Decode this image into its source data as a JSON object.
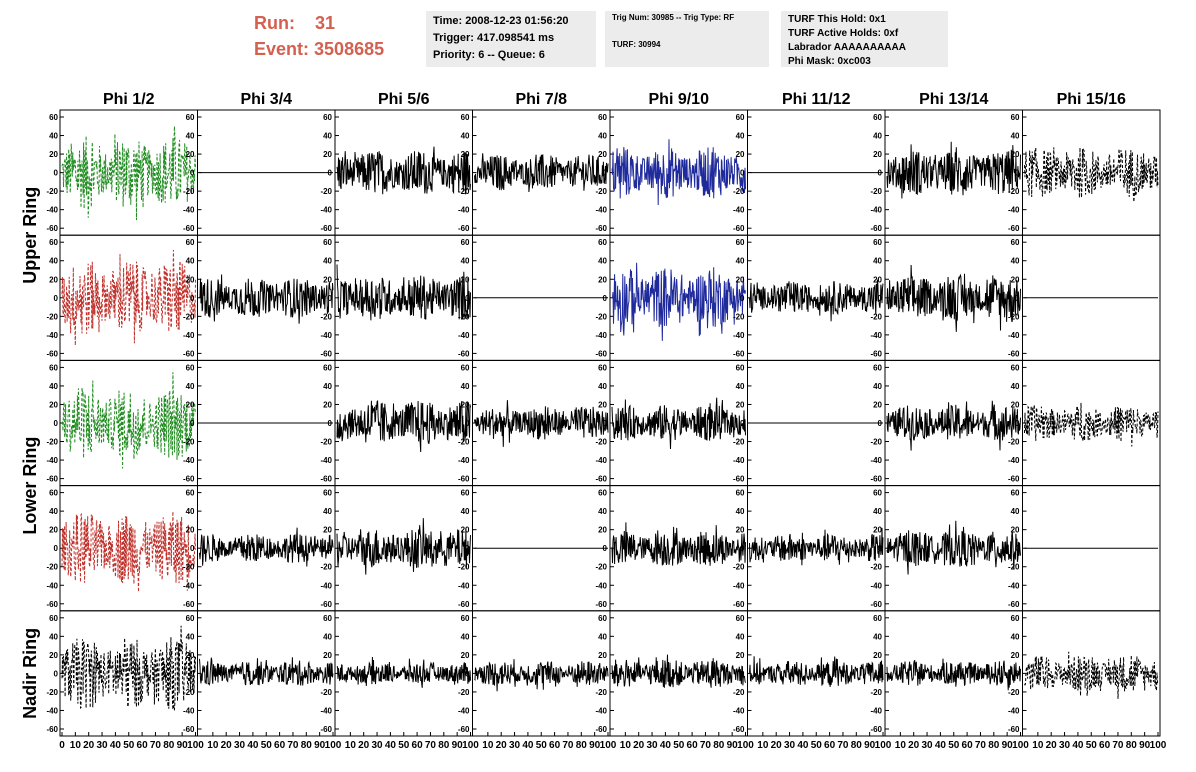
{
  "header": {
    "run_label": "Run:",
    "run_value": "31",
    "event_label": "Event:",
    "event_value": "3508685",
    "time_line": "Time: 2008-12-23 01:56:20",
    "trigger_line": "Trigger: 417.098541 ms",
    "priority_line": "Priority: 6 -- Queue: 6",
    "trig_num_line": "Trig Num: 30985 -- Trig Type: RF",
    "turf_line": "TURF: 30994",
    "turf_hold_line": "TURF This Hold: 0x1",
    "turf_active_line": "TURF Active Holds: 0xf",
    "labrador_line": "Labrador AAAAAAAAAA",
    "phi_mask_line": "Phi Mask: 0xc003"
  },
  "columns": [
    "Phi 1/2",
    "Phi 3/4",
    "Phi 5/6",
    "Phi 7/8",
    "Phi 9/10",
    "Phi 11/12",
    "Phi 13/14",
    "Phi 15/16"
  ],
  "ring_labels": [
    "Upper Ring",
    "Lower Ring",
    "Nadir Ring"
  ],
  "colors": {
    "green": "#1f8c1f",
    "red": "#c0302a",
    "blue": "#1f2a9c",
    "black": "#000000",
    "header_red": "#d4604f"
  },
  "chart_data": {
    "type": "line",
    "title": "",
    "xlabel": "",
    "ylabel": "",
    "xlim": [
      0,
      100
    ],
    "ylim": [
      -60,
      60
    ],
    "yticks": [
      -60,
      -40,
      -20,
      0,
      20,
      40,
      60
    ],
    "xticks": [
      0,
      10,
      20,
      30,
      40,
      50,
      60,
      70,
      80,
      90,
      100
    ],
    "grid": false,
    "panel_rows": 5,
    "panel_cols": 8,
    "panels": [
      {
        "row": 0,
        "col": 0,
        "style": "dashed",
        "color": "green",
        "amplitude": 40,
        "flat": false
      },
      {
        "row": 0,
        "col": 1,
        "style": "solid",
        "color": "black",
        "amplitude": 0,
        "flat": true
      },
      {
        "row": 0,
        "col": 2,
        "style": "solid",
        "color": "black",
        "amplitude": 25,
        "flat": false
      },
      {
        "row": 0,
        "col": 3,
        "style": "solid",
        "color": "black",
        "amplitude": 20,
        "flat": false
      },
      {
        "row": 0,
        "col": 4,
        "style": "solid",
        "color": "blue",
        "amplitude": 28,
        "flat": false
      },
      {
        "row": 0,
        "col": 5,
        "style": "solid",
        "color": "black",
        "amplitude": 0,
        "flat": true
      },
      {
        "row": 0,
        "col": 6,
        "style": "solid",
        "color": "black",
        "amplitude": 25,
        "flat": false
      },
      {
        "row": 0,
        "col": 7,
        "style": "dashed",
        "color": "black",
        "amplitude": 28,
        "flat": false
      },
      {
        "row": 1,
        "col": 0,
        "style": "dashed",
        "color": "red",
        "amplitude": 42,
        "flat": false
      },
      {
        "row": 1,
        "col": 1,
        "style": "solid",
        "color": "black",
        "amplitude": 22,
        "flat": false
      },
      {
        "row": 1,
        "col": 2,
        "style": "solid",
        "color": "black",
        "amplitude": 25,
        "flat": false
      },
      {
        "row": 1,
        "col": 3,
        "style": "solid",
        "color": "black",
        "amplitude": 0,
        "flat": true
      },
      {
        "row": 1,
        "col": 4,
        "style": "solid",
        "color": "blue",
        "amplitude": 34,
        "flat": false
      },
      {
        "row": 1,
        "col": 5,
        "style": "solid",
        "color": "black",
        "amplitude": 18,
        "flat": false
      },
      {
        "row": 1,
        "col": 6,
        "style": "solid",
        "color": "black",
        "amplitude": 25,
        "flat": false
      },
      {
        "row": 1,
        "col": 7,
        "style": "solid",
        "color": "black",
        "amplitude": 0,
        "flat": true
      },
      {
        "row": 2,
        "col": 0,
        "style": "dashed",
        "color": "green",
        "amplitude": 40,
        "flat": false
      },
      {
        "row": 2,
        "col": 1,
        "style": "solid",
        "color": "black",
        "amplitude": 0,
        "flat": true
      },
      {
        "row": 2,
        "col": 2,
        "style": "solid",
        "color": "black",
        "amplitude": 25,
        "flat": false
      },
      {
        "row": 2,
        "col": 3,
        "style": "solid",
        "color": "black",
        "amplitude": 18,
        "flat": false
      },
      {
        "row": 2,
        "col": 4,
        "style": "solid",
        "color": "black",
        "amplitude": 20,
        "flat": false
      },
      {
        "row": 2,
        "col": 5,
        "style": "solid",
        "color": "black",
        "amplitude": 0,
        "flat": true
      },
      {
        "row": 2,
        "col": 6,
        "style": "solid",
        "color": "black",
        "amplitude": 20,
        "flat": false
      },
      {
        "row": 2,
        "col": 7,
        "style": "dashed",
        "color": "black",
        "amplitude": 20,
        "flat": false
      },
      {
        "row": 3,
        "col": 0,
        "style": "dashed",
        "color": "red",
        "amplitude": 40,
        "flat": false
      },
      {
        "row": 3,
        "col": 1,
        "style": "solid",
        "color": "black",
        "amplitude": 16,
        "flat": false
      },
      {
        "row": 3,
        "col": 2,
        "style": "solid",
        "color": "black",
        "amplitude": 22,
        "flat": false
      },
      {
        "row": 3,
        "col": 3,
        "style": "solid",
        "color": "black",
        "amplitude": 0,
        "flat": true
      },
      {
        "row": 3,
        "col": 4,
        "style": "solid",
        "color": "black",
        "amplitude": 20,
        "flat": false
      },
      {
        "row": 3,
        "col": 5,
        "style": "solid",
        "color": "black",
        "amplitude": 16,
        "flat": false
      },
      {
        "row": 3,
        "col": 6,
        "style": "solid",
        "color": "black",
        "amplitude": 20,
        "flat": false
      },
      {
        "row": 3,
        "col": 7,
        "style": "solid",
        "color": "black",
        "amplitude": 0,
        "flat": true
      },
      {
        "row": 4,
        "col": 0,
        "style": "dashed",
        "color": "black",
        "amplitude": 40,
        "flat": false
      },
      {
        "row": 4,
        "col": 1,
        "style": "solid",
        "color": "black",
        "amplitude": 14,
        "flat": false
      },
      {
        "row": 4,
        "col": 2,
        "style": "solid",
        "color": "black",
        "amplitude": 12,
        "flat": false
      },
      {
        "row": 4,
        "col": 3,
        "style": "solid",
        "color": "black",
        "amplitude": 14,
        "flat": false
      },
      {
        "row": 4,
        "col": 4,
        "style": "solid",
        "color": "black",
        "amplitude": 16,
        "flat": false
      },
      {
        "row": 4,
        "col": 5,
        "style": "solid",
        "color": "black",
        "amplitude": 14,
        "flat": false
      },
      {
        "row": 4,
        "col": 6,
        "style": "solid",
        "color": "black",
        "amplitude": 14,
        "flat": false
      },
      {
        "row": 4,
        "col": 7,
        "style": "dashed",
        "color": "black",
        "amplitude": 20,
        "flat": false
      }
    ]
  }
}
